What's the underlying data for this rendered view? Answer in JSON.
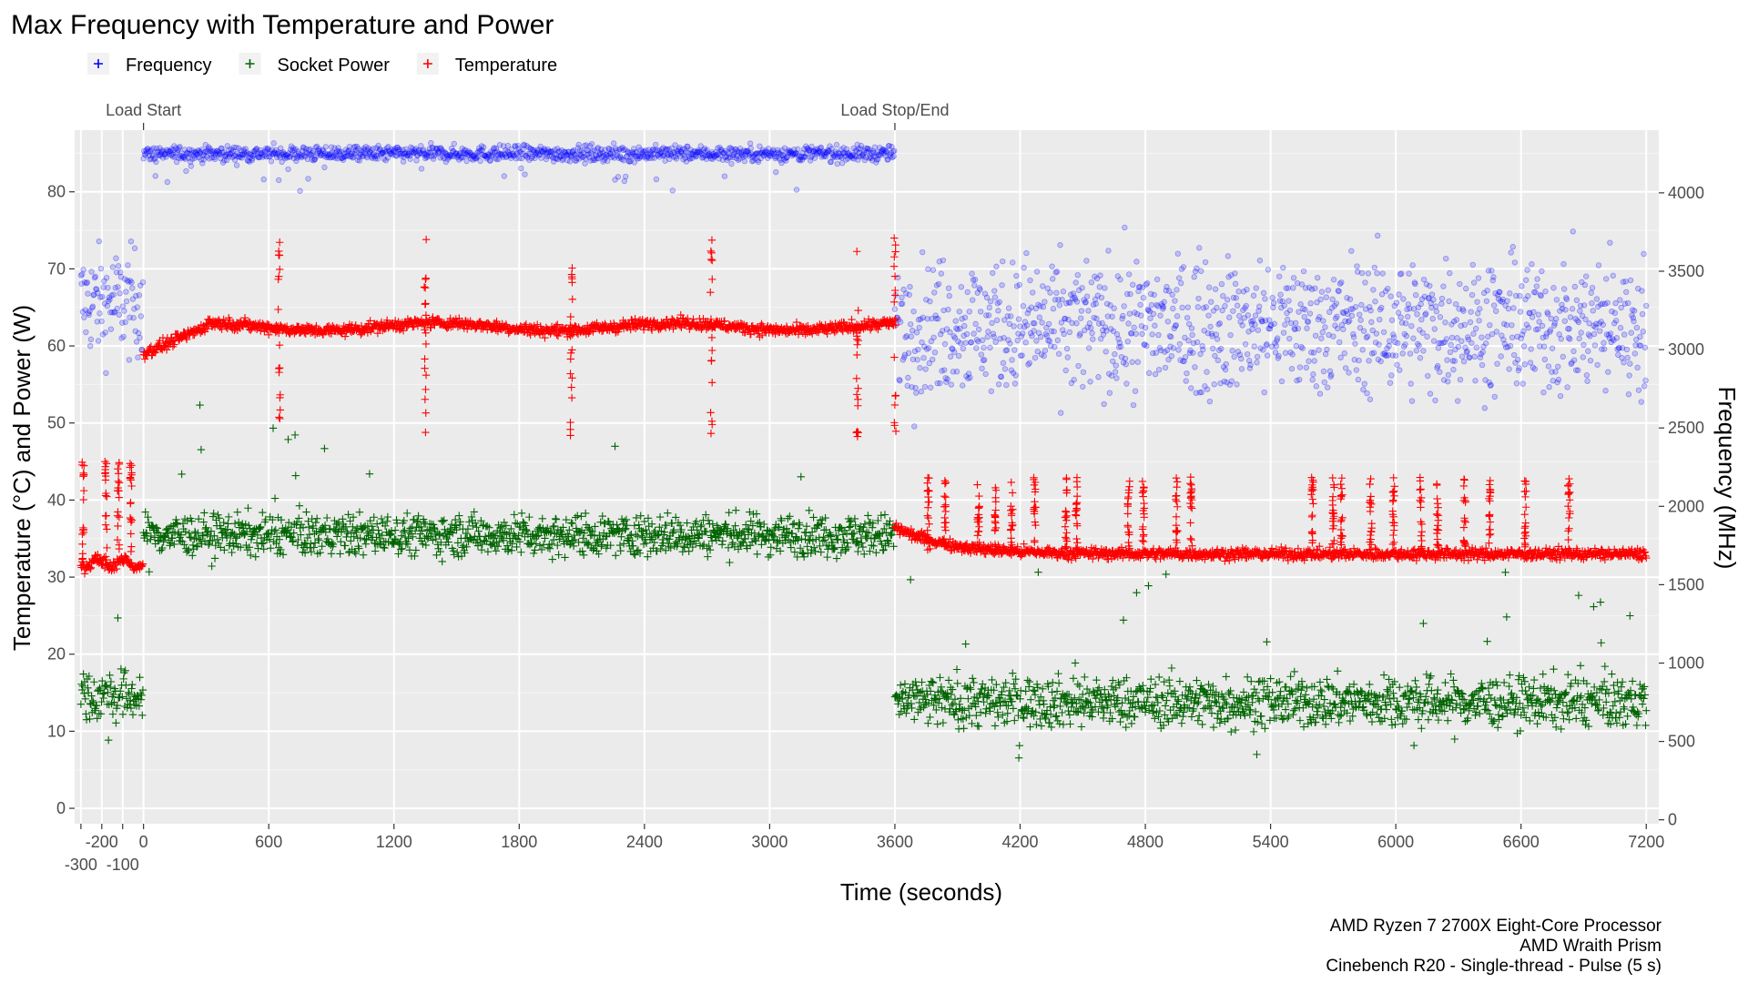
{
  "chart_data": {
    "type": "scatter",
    "title": "Max Frequency with Temperature and Power",
    "xlabel": "Time (seconds)",
    "ylabel_left": "Temperature (°C) and Power (W)",
    "ylabel_right": "Frequency (MHz)",
    "xlim": [
      -330,
      7260
    ],
    "ylim_left": [
      -2,
      88
    ],
    "ylim_right": [
      -25,
      4400
    ],
    "x_ticks_upper": [
      -200,
      0,
      600,
      1200,
      1800,
      2400,
      3000,
      3600,
      4200,
      4800,
      5400,
      6000,
      6600,
      7200
    ],
    "x_ticks_lower": [
      -300,
      -100
    ],
    "x_ticks_upper_labels": [
      "-200",
      "0",
      "600",
      "1200",
      "1800",
      "2400",
      "3000",
      "3600",
      "4200",
      "4800",
      "5400",
      "6000",
      "6600",
      "7200"
    ],
    "x_ticks_lower_labels": [
      "-300",
      "-100"
    ],
    "y_ticks_left": [
      0,
      10,
      20,
      30,
      40,
      50,
      60,
      70,
      80
    ],
    "y_ticks_left_labels": [
      "0",
      "10",
      "20",
      "30",
      "40",
      "50",
      "60",
      "70",
      "80"
    ],
    "y_ticks_right": [
      0,
      500,
      1000,
      1500,
      2000,
      2500,
      3000,
      3500,
      4000
    ],
    "y_ticks_right_labels": [
      "0",
      "500",
      "1000",
      "1500",
      "2000",
      "2500",
      "3000",
      "3500",
      "4000"
    ],
    "grid": true,
    "legend_position": "top-left",
    "legend": [
      {
        "label": "Frequency",
        "color": "#0000ff"
      },
      {
        "label": "Socket Power",
        "color": "#006400"
      },
      {
        "label": "Temperature",
        "color": "#ff0000"
      }
    ],
    "annotations": [
      {
        "label": "Load Start",
        "x": 0
      },
      {
        "label": "Load Stop/End",
        "x": 3600
      }
    ],
    "caption": [
      "AMD Ryzen 7 2700X Eight-Core Processor",
      "AMD Wraith Prism",
      "Cinebench R20 - Single-thread - Pulse (5 s)"
    ],
    "series": [
      {
        "name": "Frequency",
        "axis": "right",
        "color": "#0000ff",
        "approx_levels": [
          {
            "x_range": [
              -300,
              0
            ],
            "y": 3350
          },
          {
            "x_range": [
              0,
              3600
            ],
            "y": 4250
          },
          {
            "x_range": [
              3600,
              7200
            ],
            "y": 3150
          }
        ]
      },
      {
        "name": "Socket Power",
        "axis": "left",
        "color": "#006400",
        "approx_levels": [
          {
            "x_range": [
              -300,
              0
            ],
            "y": 14.5
          },
          {
            "x_range": [
              0,
              3600
            ],
            "y": 35.5
          },
          {
            "x_range": [
              3600,
              7200
            ],
            "y": 14
          }
        ]
      },
      {
        "name": "Temperature",
        "axis": "left",
        "color": "#ff0000",
        "approx_levels": [
          {
            "x_range": [
              -300,
              0
            ],
            "y": 31.8
          },
          {
            "x_range": [
              0,
              3600
            ],
            "y": 62.5
          },
          {
            "x_range": [
              3600,
              7200
            ],
            "y": 33
          }
        ],
        "spikes_load": [
          650,
          1350,
          2050,
          2720,
          3420,
          3600
        ],
        "spikes_idle": [
          3760,
          3840,
          4000,
          4080,
          4160,
          4270,
          4420,
          4470,
          4720,
          4790,
          4950,
          5020,
          5600,
          5700,
          5740,
          5880,
          5990,
          6120,
          6200,
          6330,
          6450,
          6620,
          6830
        ]
      }
    ]
  }
}
